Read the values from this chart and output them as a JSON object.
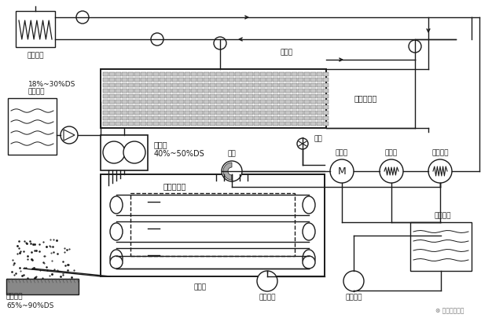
{
  "bg_color": "#ffffff",
  "lc": "#1a1a1a",
  "labels": {
    "oil_heater": "油加热器",
    "dsludge1": "脱水污泥",
    "dsludge2": "18%~30%DS",
    "evaporator": "薄层蒸发器",
    "shredder1": "切碎机",
    "shredder2": "40%~50%DS",
    "belt_dryer": "带式干燥器",
    "fan": "风机",
    "waste_gas": "废气",
    "cooler": "冷却器",
    "condenser": "冷凝器",
    "reheater": "再加热器",
    "cooling_belt": "冷却带",
    "cooling_air": "冷却空气",
    "heat_recovery": "热量回收",
    "cond_pool": "冷凝水池",
    "gran1": "颗粒污泥",
    "gran2": "65%~90%DS",
    "steam": "水蒸气",
    "watermark": "⊛ 环境安全科学"
  }
}
